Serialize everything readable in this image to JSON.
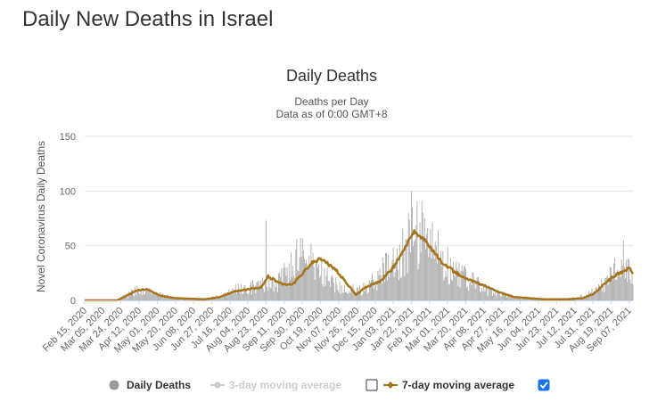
{
  "page": {
    "title": "Daily New Deaths in Israel"
  },
  "chart_data": {
    "type": "bar",
    "title": "Daily Deaths",
    "subtitle_1": "Deaths per Day",
    "subtitle_2": "Data as of 0:00 GMT+8",
    "ylabel": "Novel Coronavirus Daily Deaths",
    "xlabel": "",
    "ylim": [
      0,
      150
    ],
    "yticks": [
      "150",
      "100",
      "50",
      "0"
    ],
    "x_start": "Feb 15, 2020",
    "x_end": "Sep 11, 2021",
    "categories": [
      "Feb 15, 2020",
      "Mar 05, 2020",
      "Mar 24, 2020",
      "Apr 12, 2020",
      "May 01, 2020",
      "May 20, 2020",
      "Jun 08, 2020",
      "Jun 27, 2020",
      "Jul 16, 2020",
      "Aug 04, 2020",
      "Aug 23, 2020",
      "Sep 11, 2020",
      "Sep 30, 2020",
      "Oct 19, 2020",
      "Nov 07, 2020",
      "Nov 26, 2020",
      "Dec 15, 2020",
      "Jan 03, 2021",
      "Jan 22, 2021",
      "Feb 10, 2021",
      "Mar 01, 2021",
      "Mar 20, 2021",
      "Apr 08, 2021",
      "Apr 27, 2021",
      "May 16, 2021",
      "Jun 04, 2021",
      "Jun 23, 2021",
      "Jul 12, 2021",
      "Jul 31, 2021",
      "Aug 19, 2021",
      "Sep 07, 2021"
    ],
    "series": [
      {
        "name": "Daily Deaths",
        "color": "#aaaaaa",
        "type": "bar",
        "anchor_dates": [
          "Feb 15, 2020",
          "Mar 20, 2020",
          "Apr 12, 2020",
          "Apr 20, 2020",
          "May 05, 2020",
          "May 20, 2020",
          "Jun 20, 2020",
          "Jul 05, 2020",
          "Jul 20, 2020",
          "Aug 10, 2020",
          "Aug 23, 2020",
          "Sep 05, 2020",
          "Sep 25, 2020",
          "Oct 10, 2020",
          "Oct 25, 2020",
          "Nov 10, 2020",
          "Nov 30, 2020",
          "Dec 20, 2020",
          "Jan 10, 2021",
          "Jan 25, 2021",
          "Feb 05, 2021",
          "Feb 20, 2021",
          "Mar 10, 2021",
          "Apr 01, 2021",
          "Apr 20, 2021",
          "May 10, 2021",
          "Jun 10, 2021",
          "Jul 15, 2021",
          "Aug 05, 2021",
          "Aug 25, 2021",
          "Sep 05, 2021",
          "Sep 11, 2021"
        ],
        "anchor_values": [
          0,
          0,
          10,
          9,
          5,
          2,
          1,
          4,
          9,
          12,
          14,
          16,
          38,
          36,
          20,
          10,
          9,
          22,
          40,
          62,
          55,
          40,
          25,
          14,
          7,
          3,
          1,
          2,
          10,
          26,
          28,
          26
        ],
        "spikes": [
          {
            "date": "Aug 23, 2020",
            "value": 73
          },
          {
            "date": "Jan 22, 2021",
            "value": 100
          },
          {
            "date": "Sep 01, 2021",
            "value": 55
          }
        ]
      },
      {
        "name": "3-day moving average",
        "color": "#cccccc",
        "type": "line",
        "visible": false
      },
      {
        "name": "7-day moving average",
        "color": "#a6741a",
        "type": "line",
        "anchor_dates": [
          "Feb 15, 2020",
          "Mar 20, 2020",
          "Apr 10, 2020",
          "Apr 20, 2020",
          "May 05, 2020",
          "May 20, 2020",
          "Jun 20, 2020",
          "Jul 05, 2020",
          "Jul 20, 2020",
          "Aug 10, 2020",
          "Aug 18, 2020",
          "Aug 25, 2020",
          "Sep 10, 2020",
          "Sep 20, 2020",
          "Oct 10, 2020",
          "Oct 20, 2020",
          "Nov 05, 2020",
          "Nov 15, 2020",
          "Nov 25, 2020",
          "Dec 05, 2020",
          "Dec 20, 2020",
          "Jan 05, 2021",
          "Jan 20, 2021",
          "Jan 25, 2021",
          "Feb 05, 2021",
          "Feb 15, 2021",
          "Feb 25, 2021",
          "Mar 10, 2021",
          "Mar 25, 2021",
          "Apr 10, 2021",
          "Apr 25, 2021",
          "May 10, 2021",
          "Jun 10, 2021",
          "Jul 05, 2021",
          "Jul 20, 2021",
          "Aug 01, 2021",
          "Aug 15, 2021",
          "Aug 25, 2021",
          "Sep 02, 2021",
          "Sep 07, 2021",
          "Sep 11, 2021"
        ],
        "anchor_values": [
          0,
          0,
          9,
          10,
          4,
          2,
          1,
          3,
          8,
          11,
          12,
          22,
          14,
          15,
          35,
          38,
          27,
          16,
          5,
          12,
          17,
          32,
          56,
          63,
          55,
          44,
          33,
          25,
          18,
          13,
          7,
          3,
          1,
          1,
          2,
          6,
          17,
          24,
          27,
          30,
          24
        ]
      }
    ],
    "legend": {
      "position": "bottom",
      "items": [
        {
          "label": "Daily Deaths",
          "color": "#999999",
          "checkbox": null
        },
        {
          "label": "3-day moving average",
          "color": "#cccccc",
          "checkbox": false
        },
        {
          "label": "7-day moving average",
          "color": "#a6741a",
          "checkbox": true
        }
      ]
    },
    "grid": true
  }
}
